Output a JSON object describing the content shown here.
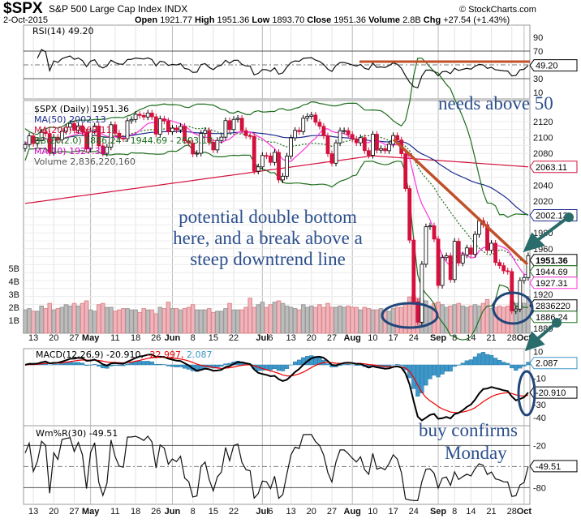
{
  "header": {
    "symbol": "$SPX",
    "name": "S&P 500 Large Cap Index",
    "exchange": "INDX",
    "date": "2-Oct-2015",
    "open_label": "Open",
    "open": "1921.77",
    "high_label": "High",
    "high": "1951.36",
    "low_label": "Low",
    "low": "1893.70",
    "close_label": "Close",
    "close": "1951.36",
    "volume_label": "Volume",
    "volume": "2.8B",
    "chg_label": "Chg",
    "chg": "+27.54 (+1.43%)",
    "copyright": "© StockCharts.com"
  },
  "legend": {
    "rsi": "RSI(14) 49.20",
    "price": "$SPX (Daily) 1951.36",
    "ma50": "MA(50) 2002.13",
    "ma200": "MA(200) 2063.11",
    "bb": "BB(20,2.0) 1886.24 - 1944.69 - 2003.13",
    "ma10": "MA(10) 1927.31",
    "volume": "Volume 2,836,220,160",
    "macd": "MACD(12,26,9) -20.910,",
    "macd_signal": "-22.997,",
    "macd_hist": "2.087",
    "wr": "Wm%R(30) -49.51"
  },
  "tags": {
    "rsi": "49.20",
    "ma200": "2063.11",
    "ma50": "2002.13",
    "close": "1951.36",
    "bb_mid": "1944.69",
    "ma10": "1927.31",
    "volume": "2836220",
    "bb_low": "1886.24",
    "macd_hist": "2.087",
    "macd": "-20.910",
    "wr": "-49.51"
  },
  "annotations": {
    "rsi_note": "needs above 50",
    "price_note": [
      "potential double bottom",
      "here, and a break above a",
      "steep downtrend line"
    ],
    "macd_note": [
      "buy confirms",
      "Monday"
    ]
  },
  "colors": {
    "up": "#000000",
    "down": "#d4103c",
    "ma50": "#1c2a8c",
    "ma200": "#d4103c",
    "bb": "#1e6e1e",
    "ma10": "#ff33dd",
    "hist": "#3d97c9",
    "annotation_line": "#c0502a",
    "annotation_circle": "#22457a",
    "arrow": "#2a6b6b"
  },
  "chart_data": [
    {
      "type": "candlestick",
      "title": "$SPX (Daily)",
      "dates": [
        "Apr 9",
        "Apr 10",
        "Apr 13",
        "Apr 14",
        "Apr 15",
        "Apr 16",
        "Apr 17",
        "Apr 20",
        "Apr 21",
        "Apr 22",
        "Apr 23",
        "Apr 24",
        "Apr 27",
        "Apr 28",
        "Apr 29",
        "Apr 30",
        "May 1",
        "May 4",
        "May 5",
        "May 6",
        "May 7",
        "May 8",
        "May 11",
        "May 12",
        "May 13",
        "May 14",
        "May 15",
        "May 18",
        "May 19",
        "May 20",
        "May 21",
        "May 22",
        "May 26",
        "May 27",
        "May 28",
        "May 29",
        "Jun 1",
        "Jun 2",
        "Jun 3",
        "Jun 4",
        "Jun 5",
        "Jun 8",
        "Jun 9",
        "Jun 10",
        "Jun 11",
        "Jun 12",
        "Jun 15",
        "Jun 16",
        "Jun 17",
        "Jun 18",
        "Jun 19",
        "Jun 22",
        "Jun 23",
        "Jun 24",
        "Jun 25",
        "Jun 26",
        "Jun 29",
        "Jun 30",
        "Jul 1",
        "Jul 2",
        "Jul 6",
        "Jul 7",
        "Jul 8",
        "Jul 9",
        "Jul 10",
        "Jul 13",
        "Jul 14",
        "Jul 15",
        "Jul 16",
        "Jul 17",
        "Jul 20",
        "Jul 21",
        "Jul 22",
        "Jul 23",
        "Jul 24",
        "Jul 27",
        "Jul 28",
        "Jul 29",
        "Jul 30",
        "Jul 31",
        "Aug 3",
        "Aug 4",
        "Aug 5",
        "Aug 6",
        "Aug 7",
        "Aug 10",
        "Aug 11",
        "Aug 12",
        "Aug 13",
        "Aug 14",
        "Aug 17",
        "Aug 18",
        "Aug 19",
        "Aug 20",
        "Aug 21",
        "Aug 24",
        "Aug 25",
        "Aug 26",
        "Aug 27",
        "Aug 28",
        "Aug 31",
        "Sep 1",
        "Sep 2",
        "Sep 3",
        "Sep 4",
        "Sep 8",
        "Sep 9",
        "Sep 10",
        "Sep 11",
        "Sep 14",
        "Sep 15",
        "Sep 16",
        "Sep 17",
        "Sep 18",
        "Sep 21",
        "Sep 22",
        "Sep 23",
        "Sep 24",
        "Sep 25",
        "Sep 28",
        "Sep 29",
        "Sep 30",
        "Oct 1",
        "Oct 2"
      ],
      "close": [
        2091.18,
        2102.06,
        2092.43,
        2095.84,
        2106.63,
        2104.99,
        2081.18,
        2100.4,
        2097.29,
        2107.96,
        2112.93,
        2117.69,
        2108.92,
        2114.76,
        2106.85,
        2085.51,
        2108.29,
        2114.49,
        2089.46,
        2080.15,
        2088.0,
        2116.1,
        2105.33,
        2099.12,
        2098.48,
        2121.1,
        2122.73,
        2129.2,
        2127.83,
        2125.85,
        2130.82,
        2126.06,
        2104.2,
        2123.48,
        2120.79,
        2107.39,
        2111.73,
        2109.6,
        2114.07,
        2095.84,
        2092.83,
        2079.28,
        2080.15,
        2105.2,
        2108.86,
        2094.11,
        2084.43,
        2096.29,
        2100.44,
        2121.24,
        2109.99,
        2122.85,
        2124.2,
        2108.58,
        2102.31,
        2101.49,
        2057.64,
        2063.11,
        2077.42,
        2076.78,
        2068.76,
        2081.34,
        2046.68,
        2051.31,
        2076.62,
        2099.6,
        2108.95,
        2107.4,
        2124.29,
        2126.64,
        2128.28,
        2119.21,
        2114.15,
        2102.15,
        2079.65,
        2067.64,
        2093.25,
        2108.57,
        2108.63,
        2103.84,
        2098.04,
        2093.32,
        2099.84,
        2083.56,
        2077.57,
        2104.18,
        2084.07,
        2086.05,
        2083.39,
        2091.54,
        2102.44,
        2096.92,
        2079.61,
        2035.73,
        1970.89,
        1893.21,
        1867.61,
        1940.51,
        1987.66,
        1988.87,
        1972.18,
        1913.85,
        1948.86,
        1951.13,
        1921.22,
        1969.41,
        1942.04,
        1952.29,
        1961.05,
        1953.03,
        1978.09,
        1995.31,
        1990.2,
        1958.03,
        1966.97,
        1942.74,
        1938.76,
        1932.24,
        1931.34,
        1881.77,
        1884.09,
        1920.03,
        1923.82,
        1951.36
      ],
      "volume_billions": [
        1.8,
        1.9,
        1.7,
        1.7,
        2.1,
        1.9,
        2.3,
        1.8,
        1.9,
        2.0,
        2.2,
        2.1,
        2.3,
        2.1,
        2.3,
        2.5,
        1.8,
        1.7,
        2.2,
        2.3,
        2.0,
        2.0,
        1.7,
        1.8,
        1.9,
        1.9,
        1.8,
        1.8,
        1.6,
        1.9,
        1.8,
        1.8,
        1.5,
        2.0,
        1.9,
        2.4,
        1.9,
        1.9,
        1.8,
        1.9,
        2.0,
        2.2,
        1.8,
        1.8,
        1.8,
        1.9,
        1.6,
        1.7,
        1.7,
        1.9,
        2.3,
        1.8,
        1.8,
        1.8,
        2.0,
        2.7,
        2.0,
        2.2,
        2.4,
        2.0,
        2.2,
        2.4,
        2.5,
        2.3,
        2.1,
        2.0,
        1.9,
        1.8,
        2.2,
        2.0,
        2.1,
        2.0,
        2.2,
        2.0,
        2.3,
        2.0,
        2.0,
        2.1,
        2.0,
        2.1,
        2.0,
        2.0,
        1.8,
        2.0,
        1.9,
        1.8,
        1.8,
        1.9,
        1.8,
        1.7,
        1.9,
        2.0,
        2.0,
        2.3,
        2.8,
        2.9,
        2.7,
        2.6,
        2.5,
        2.1,
        2.3,
        2.4,
        2.2,
        2.0,
        2.1,
        2.2,
        2.3,
        2.1,
        2.0,
        2.1,
        2.2,
        2.1,
        2.3,
        2.6,
        1.9,
        2.0,
        2.1,
        2.0,
        2.1,
        2.5,
        2.3,
        2.4,
        2.3,
        2.84
      ],
      "ma200": [
        [
          "Apr 9",
          2017
        ],
        [
          "Aug 10",
          2077
        ],
        [
          "Oct 2",
          2063.11
        ]
      ],
      "price_axis": [
        2120,
        2100,
        2080,
        2040,
        2020,
        1980,
        1960,
        1920,
        1880
      ],
      "volume_axis": [
        "1B",
        "2B",
        "3B",
        "4B",
        "5B"
      ],
      "x_tick_labels": [
        [
          "Apr 13",
          "13"
        ],
        [
          "Apr 20",
          "20"
        ],
        [
          "Apr 27",
          "27"
        ],
        [
          "May 1",
          "May"
        ],
        [
          "May 11",
          "11"
        ],
        [
          "May 18",
          "18"
        ],
        [
          "May 26",
          "26"
        ],
        [
          "Jun 1",
          "Jun"
        ],
        [
          "Jun 8",
          "8"
        ],
        [
          "Jun 15",
          "15"
        ],
        [
          "Jun 22",
          "22"
        ],
        [
          "Jul 1",
          "Jul"
        ],
        [
          "Jul 6",
          "6"
        ],
        [
          "Jul 13",
          "13"
        ],
        [
          "Jul 20",
          "20"
        ],
        [
          "Jul 27",
          "27"
        ],
        [
          "Aug 3",
          "Aug"
        ],
        [
          "Aug 10",
          "10"
        ],
        [
          "Aug 17",
          "17"
        ],
        [
          "Aug 24",
          "24"
        ],
        [
          "Sep 1",
          "Sep"
        ],
        [
          "Sep 8",
          "8"
        ],
        [
          "Sep 14",
          "14"
        ],
        [
          "Sep 21",
          "21"
        ],
        [
          "Sep 28",
          "28"
        ],
        [
          "Oct 1",
          "Oct"
        ]
      ]
    },
    {
      "type": "line",
      "title": "RSI(14)",
      "y_axis": [
        90,
        70,
        30,
        10
      ],
      "reference_lines": [
        70,
        50,
        30
      ]
    },
    {
      "type": "line+bar",
      "title": "MACD(12,26,9)",
      "y_axis": [
        10,
        -10,
        -30,
        -40
      ]
    },
    {
      "type": "line",
      "title": "Wm%R(30)",
      "y_axis": [
        -20,
        -80
      ],
      "reference_lines": [
        -20,
        -50,
        -80
      ]
    }
  ]
}
